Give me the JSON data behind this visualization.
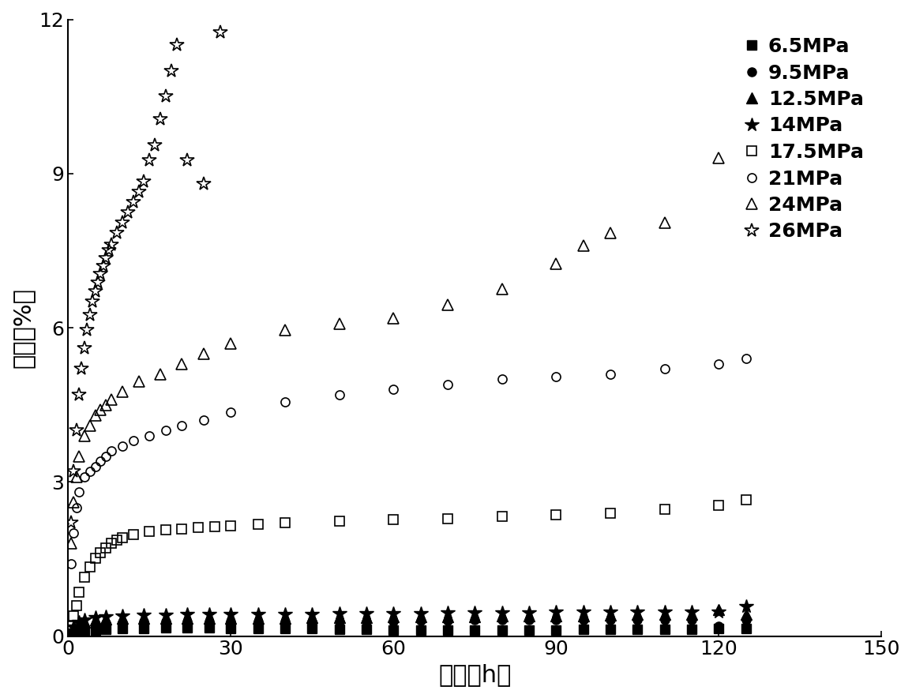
{
  "xlabel": "时间（h）",
  "ylabel": "应变（%）",
  "xlim": [
    0,
    150
  ],
  "ylim": [
    0,
    12
  ],
  "xticks": [
    0,
    30,
    60,
    90,
    120,
    150
  ],
  "yticks": [
    0,
    3,
    6,
    9,
    12
  ],
  "series": [
    {
      "label": "6.5MPa",
      "marker": "s",
      "filled": true,
      "x": [
        1,
        2,
        3,
        5,
        7,
        10,
        14,
        18,
        22,
        26,
        30,
        35,
        40,
        45,
        50,
        55,
        60,
        65,
        70,
        75,
        80,
        85,
        90,
        95,
        100,
        105,
        110,
        115,
        120,
        125
      ],
      "y": [
        0.05,
        0.08,
        0.1,
        0.12,
        0.13,
        0.14,
        0.15,
        0.16,
        0.16,
        0.16,
        0.15,
        0.15,
        0.14,
        0.14,
        0.13,
        0.13,
        0.12,
        0.12,
        0.12,
        0.12,
        0.12,
        0.12,
        0.12,
        0.13,
        0.13,
        0.13,
        0.13,
        0.13,
        0.14,
        0.14
      ]
    },
    {
      "label": "9.5MPa",
      "marker": "o",
      "filled": true,
      "x": [
        1,
        2,
        3,
        5,
        7,
        10,
        14,
        18,
        22,
        26,
        30,
        35,
        40,
        45,
        50,
        55,
        60,
        65,
        70,
        75,
        80,
        85,
        90,
        95,
        100,
        105,
        110,
        115,
        120,
        125
      ],
      "y": [
        0.1,
        0.15,
        0.18,
        0.22,
        0.25,
        0.27,
        0.28,
        0.28,
        0.28,
        0.28,
        0.28,
        0.28,
        0.28,
        0.28,
        0.28,
        0.29,
        0.29,
        0.3,
        0.3,
        0.31,
        0.31,
        0.31,
        0.31,
        0.31,
        0.31,
        0.32,
        0.32,
        0.32,
        0.2,
        0.32
      ]
    },
    {
      "label": "12.5MPa",
      "marker": "^",
      "filled": true,
      "x": [
        1,
        2,
        3,
        5,
        7,
        10,
        14,
        18,
        22,
        26,
        30,
        35,
        40,
        45,
        50,
        55,
        60,
        65,
        70,
        75,
        80,
        85,
        90,
        95,
        100,
        105,
        110,
        115,
        120,
        125
      ],
      "y": [
        0.15,
        0.22,
        0.27,
        0.31,
        0.33,
        0.34,
        0.35,
        0.35,
        0.35,
        0.35,
        0.35,
        0.35,
        0.35,
        0.36,
        0.36,
        0.36,
        0.37,
        0.37,
        0.38,
        0.38,
        0.39,
        0.39,
        0.4,
        0.4,
        0.41,
        0.42,
        0.42,
        0.43,
        0.52,
        0.43
      ]
    },
    {
      "label": "14MPa",
      "marker": "*",
      "filled": true,
      "x": [
        1,
        2,
        3,
        5,
        7,
        10,
        14,
        18,
        22,
        26,
        30,
        35,
        40,
        45,
        50,
        55,
        60,
        65,
        70,
        75,
        80,
        85,
        90,
        95,
        100,
        105,
        110,
        115,
        120,
        125
      ],
      "y": [
        0.18,
        0.27,
        0.32,
        0.36,
        0.38,
        0.4,
        0.41,
        0.41,
        0.42,
        0.42,
        0.42,
        0.42,
        0.43,
        0.43,
        0.44,
        0.44,
        0.44,
        0.44,
        0.45,
        0.45,
        0.46,
        0.46,
        0.47,
        0.47,
        0.47,
        0.47,
        0.47,
        0.47,
        0.47,
        0.57
      ]
    },
    {
      "label": "17.5MPa",
      "marker": "s",
      "filled": false,
      "x": [
        0.5,
        1,
        1.5,
        2,
        3,
        4,
        5,
        6,
        7,
        8,
        9,
        10,
        12,
        15,
        18,
        21,
        24,
        27,
        30,
        35,
        40,
        50,
        60,
        70,
        80,
        90,
        100,
        110,
        120,
        125
      ],
      "y": [
        0.2,
        0.4,
        0.6,
        0.85,
        1.15,
        1.35,
        1.52,
        1.62,
        1.72,
        1.8,
        1.87,
        1.92,
        1.98,
        2.03,
        2.07,
        2.09,
        2.11,
        2.13,
        2.15,
        2.18,
        2.2,
        2.24,
        2.27,
        2.29,
        2.33,
        2.36,
        2.39,
        2.46,
        2.55,
        2.65
      ]
    },
    {
      "label": "21MPa",
      "marker": "o",
      "filled": false,
      "x": [
        0.5,
        1,
        1.5,
        2,
        3,
        4,
        5,
        6,
        7,
        8,
        10,
        12,
        15,
        18,
        21,
        25,
        30,
        40,
        50,
        60,
        70,
        80,
        90,
        100,
        110,
        120,
        125
      ],
      "y": [
        1.4,
        2.0,
        2.5,
        2.8,
        3.1,
        3.2,
        3.3,
        3.4,
        3.5,
        3.6,
        3.7,
        3.8,
        3.9,
        4.0,
        4.1,
        4.2,
        4.35,
        4.55,
        4.7,
        4.8,
        4.9,
        5.0,
        5.05,
        5.1,
        5.2,
        5.3,
        5.4
      ]
    },
    {
      "label": "24MPa",
      "marker": "^",
      "filled": false,
      "x": [
        0.5,
        1,
        1.5,
        2,
        3,
        4,
        5,
        6,
        7,
        8,
        10,
        13,
        17,
        21,
        25,
        30,
        40,
        50,
        60,
        70,
        80,
        90,
        95,
        100,
        110,
        120
      ],
      "y": [
        1.8,
        2.6,
        3.1,
        3.5,
        3.9,
        4.1,
        4.3,
        4.4,
        4.5,
        4.6,
        4.75,
        4.95,
        5.1,
        5.3,
        5.5,
        5.7,
        5.95,
        6.08,
        6.18,
        6.45,
        6.75,
        7.25,
        7.6,
        7.85,
        8.05,
        9.3
      ]
    },
    {
      "label": "26MPa",
      "marker": "*",
      "filled": false,
      "x": [
        0.5,
        1,
        1.5,
        2,
        2.5,
        3,
        3.5,
        4,
        4.5,
        5,
        5.5,
        6,
        6.5,
        7,
        7.5,
        8,
        9,
        10,
        11,
        12,
        13,
        14,
        15,
        16,
        17,
        18,
        19,
        20,
        22,
        25,
        28
      ],
      "y": [
        2.2,
        3.2,
        4.0,
        4.7,
        5.2,
        5.6,
        5.95,
        6.25,
        6.5,
        6.7,
        6.88,
        7.05,
        7.2,
        7.35,
        7.5,
        7.62,
        7.85,
        8.05,
        8.25,
        8.45,
        8.65,
        8.85,
        9.25,
        9.55,
        10.05,
        10.5,
        11.0,
        11.5,
        9.25,
        8.8,
        11.75
      ]
    }
  ],
  "font_size": 18,
  "tick_font_size": 18,
  "label_font_size": 22,
  "legend_font_size": 18
}
